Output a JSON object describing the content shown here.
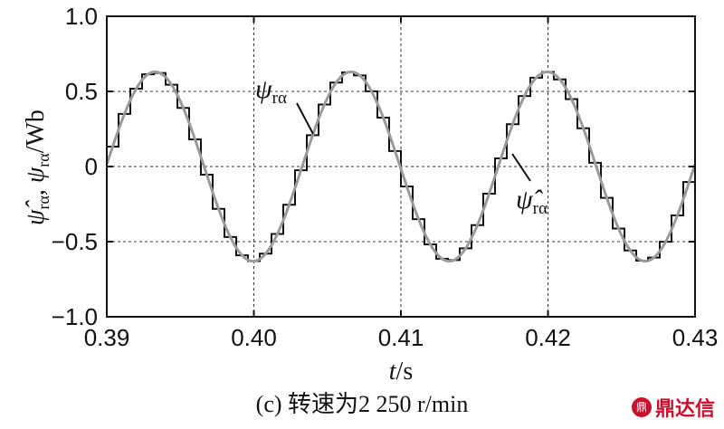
{
  "chart_data": {
    "type": "line",
    "xlabel": "t/s",
    "ylabel": "ψ̂rα, ψrα/Wb",
    "xlim": [
      0.39,
      0.43
    ],
    "ylim": [
      -1.0,
      1.0
    ],
    "x_ticks": [
      "0.39",
      "0.40",
      "0.41",
      "0.42",
      "0.43"
    ],
    "y_ticks": [
      "1.0",
      "0.5",
      "0",
      "−0.5",
      "−1.0"
    ],
    "grid": "dashed at inner ticks",
    "series": [
      {
        "name": "ψrα",
        "color": "#9a9a9a",
        "style": "smooth sine",
        "amplitude": 0.63,
        "frequency_hz": 75,
        "phase_zero_time": 0.38995
      },
      {
        "name": "ψ̂rα",
        "color": "#111111",
        "style": "staircase",
        "amplitude": 0.63,
        "frequency_hz": 75,
        "step_s": 0.0008
      }
    ],
    "annotations": [
      "ψrα",
      "ψ̂rα"
    ]
  },
  "caption": "(c) 转速为2 250 r/min",
  "watermark": {
    "logo": "鼎",
    "text": "鼎达信"
  },
  "colors": {
    "smooth_series": "#9a9a9a",
    "step_series": "#111111",
    "grid": "#333333"
  }
}
